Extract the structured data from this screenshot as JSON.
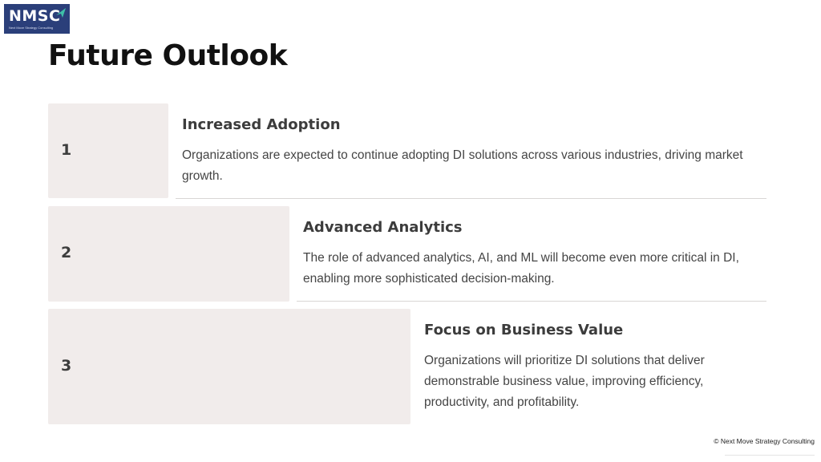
{
  "logo": {
    "mark": "NMSC",
    "tagline": "Next Move Strategy Consulting"
  },
  "slide": {
    "title": "Future Outlook"
  },
  "items": [
    {
      "number": "1",
      "title": "Increased Adoption",
      "description": "Organizations are expected to continue adopting DI solutions across various industries, driving market growth."
    },
    {
      "number": "2",
      "title": "Advanced Analytics",
      "description": "The role of advanced analytics, AI, and ML will become even more critical in DI, enabling more sophisticated decision-making."
    },
    {
      "number": "3",
      "title": "Focus on Business Value",
      "description": "Organizations will prioritize DI solutions that deliver demonstrable business value, improving efficiency, productivity, and profitability."
    }
  ],
  "footer": {
    "copyright": "© Next Move Strategy Consulting"
  },
  "colors": {
    "brand_navy": "#2b3f7a",
    "number_box": "#f1eceb",
    "title_text": "#111111"
  }
}
